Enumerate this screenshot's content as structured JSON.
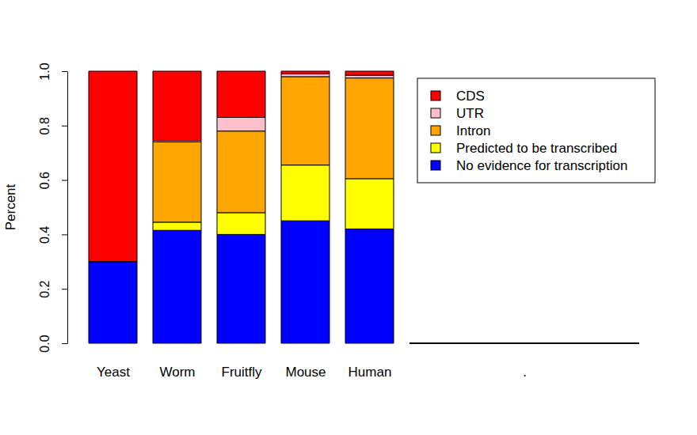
{
  "chart_data": {
    "type": "bar",
    "stacked": true,
    "legend": "topright",
    "ylabel": "Percent",
    "categories": [
      "Yeast",
      "Worm",
      "Fruitfly",
      "Mouse",
      "Human",
      "."
    ],
    "series": [
      {
        "name": "CDS",
        "color": "#ff0000",
        "values": [
          0.7,
          0.255,
          0.17,
          0.01,
          0.015,
          0
        ]
      },
      {
        "name": "UTR",
        "color": "#ffc0cb",
        "values": [
          0,
          0.005,
          0.05,
          0.01,
          0.01,
          0
        ]
      },
      {
        "name": "Intron",
        "color": "#ffa500",
        "values": [
          0,
          0.295,
          0.3,
          0.325,
          0.37,
          0
        ]
      },
      {
        "name": "Predicted to be transcribed",
        "color": "#ffff00",
        "values": [
          0,
          0.03,
          0.08,
          0.205,
          0.185,
          0
        ]
      },
      {
        "name": "No evidence for transcription",
        "color": "#0000ff",
        "values": [
          0.3,
          0.415,
          0.4,
          0.45,
          0.42,
          0
        ]
      }
    ],
    "ylim": [
      0,
      1
    ],
    "yticks": [
      {
        "value": 0,
        "label": "0.0"
      },
      0.2,
      0.4,
      0.6,
      0.8,
      {
        "value": 1,
        "label": "1.0"
      }
    ]
  }
}
